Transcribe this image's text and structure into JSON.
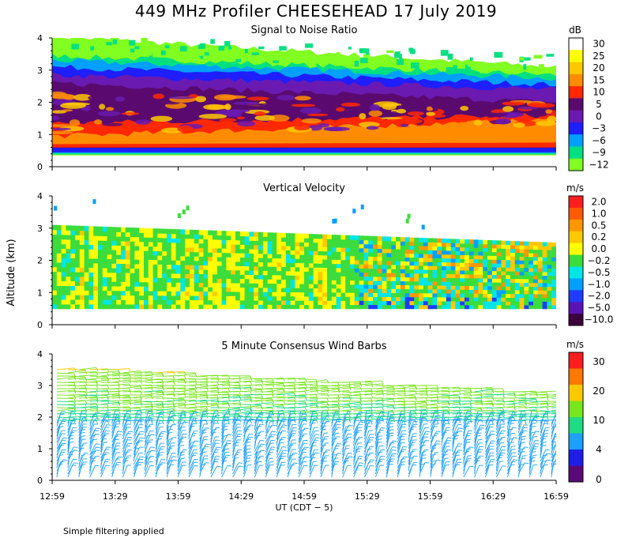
{
  "header": {
    "title": "449 MHz Profiler CHEESEHEAD 17 July 2019"
  },
  "footnote": "Simple filtering applied",
  "chart_data": [
    {
      "type": "heatmap",
      "title": "Signal to Noise Ratio",
      "ylabel": "Altitude (km)",
      "ylim": [
        0,
        4
      ],
      "yticks": [
        "0",
        "1",
        "2",
        "3",
        "4"
      ],
      "xticks": [
        "12:59",
        "13:29",
        "13:59",
        "14:29",
        "14:59",
        "15:29",
        "15:59",
        "16:29",
        "16:59"
      ],
      "colorbar": {
        "unit": "dB",
        "labels": [
          "30",
          "25",
          "20",
          "15",
          "10",
          "5",
          "0",
          "−3",
          "−6",
          "−9",
          "−12"
        ],
        "colors": [
          "#ffffff",
          "#ffff00",
          "#ffc800",
          "#ff8c00",
          "#ff2800",
          "#5a0a6e",
          "#6a1ab0",
          "#1e1eff",
          "#00a0ff",
          "#00e080",
          "#80ff20"
        ]
      },
      "layers": [
        {
          "label": "-12",
          "bottom": [
            0.35,
            0.35
          ],
          "top": [
            4.05,
            3.1
          ],
          "color": "#80ff20"
        },
        {
          "label": "-9",
          "bottom": [
            0.38,
            0.38
          ],
          "top": [
            3.45,
            2.85
          ],
          "color": "#00e080"
        },
        {
          "label": "-6",
          "bottom": [
            0.42,
            0.42
          ],
          "top": [
            3.3,
            2.75
          ],
          "color": "#00a0ff"
        },
        {
          "label": "-3",
          "bottom": [
            0.45,
            0.45
          ],
          "top": [
            3.1,
            2.55
          ],
          "color": "#1e1eff"
        },
        {
          "label": "0",
          "bottom": [
            0.5,
            0.5
          ],
          "top": [
            2.85,
            2.4
          ],
          "color": "#6a1ab0"
        },
        {
          "label": "5",
          "bottom": [
            0.52,
            0.52
          ],
          "top": [
            2.6,
            2.0
          ],
          "color": "#5a0a6e"
        },
        {
          "label": "10",
          "bottom": [
            0.6,
            0.6
          ],
          "top": [
            1.35,
            1.6
          ],
          "color": "#ff2800"
        },
        {
          "label": "15",
          "bottom": [
            0.7,
            0.75
          ],
          "top": [
            0.95,
            1.45
          ],
          "color": "#ff8c00"
        }
      ]
    },
    {
      "type": "heatmap",
      "title": "Vertical Velocity",
      "ylabel": "Altitude (km)",
      "ylim": [
        0,
        4
      ],
      "yticks": [
        "0",
        "1",
        "2",
        "3",
        "4"
      ],
      "xticks": [
        "12:59",
        "13:29",
        "13:59",
        "14:29",
        "14:59",
        "15:29",
        "15:59",
        "16:29",
        "16:59"
      ],
      "colorbar": {
        "unit": "m/s",
        "labels": [
          "2.0",
          "1.0",
          "0.5",
          "0.2",
          "0.0",
          "−0.2",
          "−0.5",
          "−1.0",
          "−2.0",
          "−5.0",
          "−10.0"
        ],
        "colors": [
          "#ff1e1e",
          "#ff5a00",
          "#ff9600",
          "#ffc800",
          "#ffff00",
          "#3cdc3c",
          "#00e6e6",
          "#00a0ff",
          "#1e3cff",
          "#5a14b4",
          "#3c003c"
        ]
      },
      "data_top_km": [
        3.1,
        2.55
      ],
      "data_bottom_km": 0.5,
      "dominant_values": [
        "0.0",
        "−0.2",
        "−0.5",
        "0.2"
      ]
    },
    {
      "type": "wind_barbs",
      "title": "5 Minute Consensus Wind Barbs",
      "ylabel": "Altitude (km)",
      "xlabel": "UT  (CDT − 5)",
      "ylim": [
        0,
        4
      ],
      "yticks": [
        "0",
        "1",
        "2",
        "3",
        "4"
      ],
      "xticks": [
        "12:59",
        "13:29",
        "13:59",
        "14:29",
        "14:59",
        "15:29",
        "15:59",
        "16:29",
        "16:59"
      ],
      "colorbar": {
        "unit": "m/s",
        "labels": [
          "30",
          "20",
          "10",
          "4",
          "0"
        ],
        "colors": [
          "#ff1e1e",
          "#ff7800",
          "#ffc800",
          "#78e61e",
          "#1edc82",
          "#1ea0ff",
          "#1e1ee6",
          "#5a0a78"
        ]
      },
      "data_top_km": [
        3.6,
        2.8
      ],
      "speed_profile": [
        {
          "altitude_km": 0.2,
          "speed_ms": 5
        },
        {
          "altitude_km": 1.0,
          "speed_ms": 5
        },
        {
          "altitude_km": 1.8,
          "speed_ms": 6
        },
        {
          "altitude_km": 2.2,
          "speed_ms": 10
        },
        {
          "altitude_km": 3.0,
          "speed_ms": 11
        },
        {
          "altitude_km": 3.5,
          "speed_ms": 15
        }
      ]
    }
  ]
}
